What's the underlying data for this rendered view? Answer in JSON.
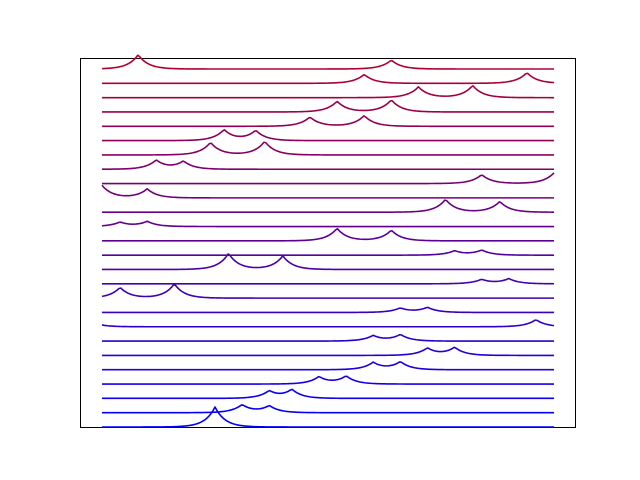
{
  "chart_data": {
    "type": "line",
    "title": "",
    "xlabel": "",
    "ylabel": "",
    "xlim": [
      0,
      1
    ],
    "ylim": [
      0,
      1
    ],
    "axes_visible": false,
    "grid": false,
    "legend": "none",
    "color_start": "#0000ff",
    "color_end": "#b00030",
    "series": [
      {
        "offset": 0.0,
        "peaks": [
          [
            0.25,
            0.056
          ]
        ]
      },
      {
        "offset": 0.04,
        "peaks": [
          [
            0.31,
            0.022
          ],
          [
            0.37,
            0.019
          ]
        ]
      },
      {
        "offset": 0.08,
        "peaks": [
          [
            0.42,
            0.024
          ],
          [
            0.37,
            0.02
          ]
        ]
      },
      {
        "offset": 0.12,
        "peaks": [
          [
            0.48,
            0.02
          ],
          [
            0.54,
            0.022
          ]
        ]
      },
      {
        "offset": 0.16,
        "peaks": [
          [
            0.6,
            0.02
          ],
          [
            0.66,
            0.022
          ]
        ]
      },
      {
        "offset": 0.2,
        "peaks": [
          [
            0.72,
            0.02
          ],
          [
            0.78,
            0.022
          ]
        ]
      },
      {
        "offset": 0.24,
        "peaks": [
          [
            0.6,
            0.015
          ],
          [
            0.66,
            0.018
          ]
        ]
      },
      {
        "offset": 0.28,
        "peaks": [
          [
            0.0,
            0.005
          ],
          [
            0.96,
            0.02
          ]
        ]
      },
      {
        "offset": 0.32,
        "peaks": [
          [
            0.66,
            0.012
          ],
          [
            0.72,
            0.014
          ]
        ]
      },
      {
        "offset": 0.36,
        "peaks": [
          [
            0.04,
            0.03
          ],
          [
            0.16,
            0.04
          ]
        ]
      },
      {
        "offset": 0.4,
        "peaks": [
          [
            0.84,
            0.012
          ],
          [
            0.9,
            0.014
          ]
        ]
      },
      {
        "offset": 0.44,
        "peaks": [
          [
            0.28,
            0.045
          ],
          [
            0.4,
            0.038
          ]
        ]
      },
      {
        "offset": 0.48,
        "peaks": [
          [
            0.78,
            0.012
          ],
          [
            0.84,
            0.014
          ]
        ]
      },
      {
        "offset": 0.52,
        "peaks": [
          [
            0.52,
            0.035
          ],
          [
            0.64,
            0.03
          ]
        ]
      },
      {
        "offset": 0.56,
        "peaks": [
          [
            0.04,
            0.012
          ],
          [
            0.1,
            0.014
          ]
        ]
      },
      {
        "offset": 0.6,
        "peaks": [
          [
            0.76,
            0.036
          ],
          [
            0.88,
            0.03
          ]
        ]
      },
      {
        "offset": 0.64,
        "peaks": [
          [
            0.0,
            0.035
          ],
          [
            0.1,
            0.025
          ]
        ]
      },
      {
        "offset": 0.68,
        "peaks": [
          [
            0.84,
            0.025
          ],
          [
            1.0,
            0.03
          ]
        ]
      },
      {
        "offset": 0.72,
        "peaks": [
          [
            0.12,
            0.025
          ],
          [
            0.18,
            0.022
          ]
        ]
      },
      {
        "offset": 0.76,
        "peaks": [
          [
            0.24,
            0.035
          ],
          [
            0.36,
            0.038
          ]
        ]
      },
      {
        "offset": 0.8,
        "peaks": [
          [
            0.27,
            0.03
          ],
          [
            0.34,
            0.028
          ]
        ]
      },
      {
        "offset": 0.84,
        "peaks": [
          [
            0.46,
            0.026
          ],
          [
            0.58,
            0.03
          ]
        ]
      },
      {
        "offset": 0.88,
        "peaks": [
          [
            0.52,
            0.03
          ],
          [
            0.64,
            0.034
          ]
        ]
      },
      {
        "offset": 0.92,
        "peaks": [
          [
            0.7,
            0.03
          ],
          [
            0.82,
            0.034
          ]
        ]
      },
      {
        "offset": 0.96,
        "peaks": [
          [
            0.58,
            0.025
          ],
          [
            0.94,
            0.03
          ]
        ]
      },
      {
        "offset": 1.0,
        "peaks": [
          [
            0.08,
            0.04
          ],
          [
            0.64,
            0.025
          ]
        ]
      }
    ]
  }
}
